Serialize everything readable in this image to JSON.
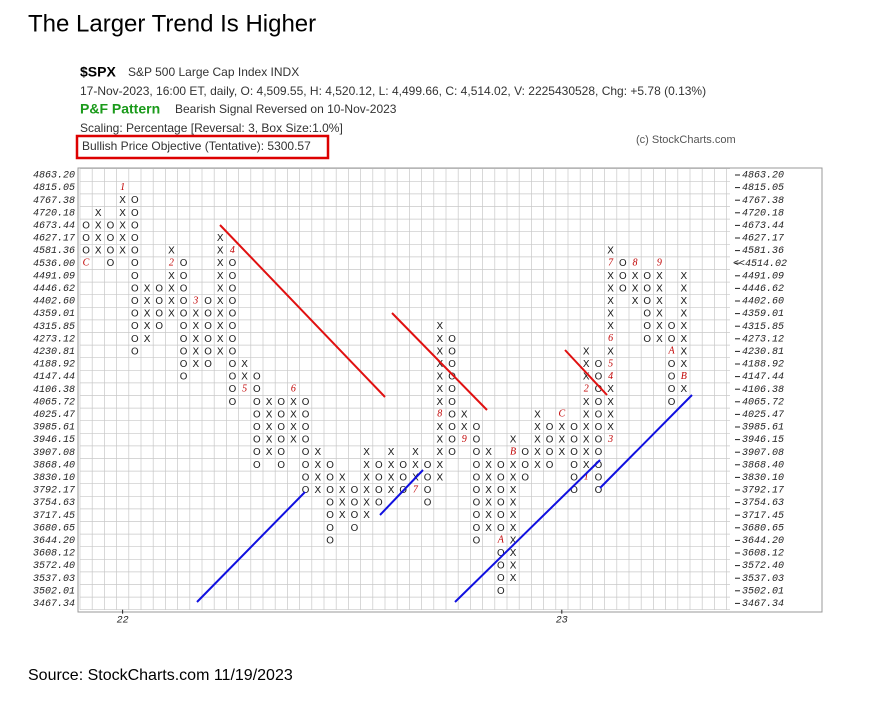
{
  "title": "The Larger Trend Is Higher",
  "source": "Source: StockCharts.com 11/19/2023",
  "header": {
    "symbol": "$SPX",
    "name": "S&P 500 Large Cap Index  INDX",
    "quote": "17-Nov-2023, 16:00 ET, daily, O: 4,509.55, H: 4,520.12, L: 4,499.66, C: 4,514.02, V: 2225430528, Chg: +5.78 (0.13%)",
    "pattern_label": "P&F Pattern",
    "pattern": "Bearish Signal Reversed on 10-Nov-2023",
    "scaling": "Scaling: Percentage [Reversal: 3, Box Size:1.0%]",
    "objective": "Bullish Price Objective (Tentative): 5300.57",
    "copyright": "(c) StockCharts.com"
  },
  "chart_data": {
    "type": "point_and_figure",
    "yticks": [
      {
        "value": 4863.2,
        "label": "4863.20"
      },
      {
        "value": 4815.05,
        "label": "4815.05"
      },
      {
        "value": 4767.38,
        "label": "4767.38"
      },
      {
        "value": 4720.18,
        "label": "4720.18"
      },
      {
        "value": 4673.44,
        "label": "4673.44"
      },
      {
        "value": 4627.17,
        "label": "4627.17"
      },
      {
        "value": 4581.36,
        "label": "4581.36"
      },
      {
        "value": 4536,
        "label": "4536.00"
      },
      {
        "value": 4491.09,
        "label": "4491.09"
      },
      {
        "value": 4446.62,
        "label": "4446.62"
      },
      {
        "value": 4402.6,
        "label": "4402.60"
      },
      {
        "value": 4359.01,
        "label": "4359.01"
      },
      {
        "value": 4315.85,
        "label": "4315.85"
      },
      {
        "value": 4273.12,
        "label": "4273.12"
      },
      {
        "value": 4230.81,
        "label": "4230.81"
      },
      {
        "value": 4188.92,
        "label": "4188.92"
      },
      {
        "value": 4147.44,
        "label": "4147.44"
      },
      {
        "value": 4106.38,
        "label": "4106.38"
      },
      {
        "value": 4065.72,
        "label": "4065.72"
      },
      {
        "value": 4025.47,
        "label": "4025.47"
      },
      {
        "value": 3985.61,
        "label": "3985.61"
      },
      {
        "value": 3946.15,
        "label": "3946.15"
      },
      {
        "value": 3907.08,
        "label": "3907.08"
      },
      {
        "value": 3868.4,
        "label": "3868.40"
      },
      {
        "value": 3830.1,
        "label": "3830.10"
      },
      {
        "value": 3792.17,
        "label": "3792.17"
      },
      {
        "value": 3754.63,
        "label": "3754.63"
      },
      {
        "value": 3717.45,
        "label": "3717.45"
      },
      {
        "value": 3680.65,
        "label": "3680.65"
      },
      {
        "value": 3644.2,
        "label": "3644.20"
      },
      {
        "value": 3608.12,
        "label": "3608.12"
      },
      {
        "value": 3572.4,
        "label": "3572.40"
      },
      {
        "value": 3537.03,
        "label": "3537.03"
      },
      {
        "value": 3502.01,
        "label": "3502.01"
      },
      {
        "value": 3467.34,
        "label": "3467.34"
      }
    ],
    "last_price": {
      "value": 4514.02,
      "label": "<<4514.02"
    },
    "xticks": [
      {
        "value": 3,
        "label": "22"
      },
      {
        "value": 39,
        "label": "23"
      }
    ],
    "x_color": "#222",
    "o_color": "#222",
    "month_color": "#c00000",
    "columns": [
      {
        "type": "O",
        "top": 4673.44,
        "bottom": 4536
      },
      {
        "type": "X",
        "top": 4720.18,
        "bottom": 4581.36
      },
      {
        "type": "O",
        "top": 4673.44,
        "bottom": 4536
      },
      {
        "type": "X",
        "top": 4815.05,
        "bottom": 4581.36
      },
      {
        "type": "O",
        "top": 4767.38,
        "bottom": 4230.81
      },
      {
        "type": "X",
        "top": 4446.62,
        "bottom": 4273.12
      },
      {
        "type": "O",
        "top": 4446.62,
        "bottom": 4315.85
      },
      {
        "type": "X",
        "top": 4581.36,
        "bottom": 4359.01
      },
      {
        "type": "O",
        "top": 4536,
        "bottom": 4147.44
      },
      {
        "type": "X",
        "top": 4402.6,
        "bottom": 4188.92
      },
      {
        "type": "O",
        "top": 4402.6,
        "bottom": 4188.92
      },
      {
        "type": "X",
        "top": 4627.17,
        "bottom": 4230.81
      },
      {
        "type": "O",
        "top": 4581.36,
        "bottom": 4065.72
      },
      {
        "type": "X",
        "top": 4188.92,
        "bottom": 4106.38
      },
      {
        "type": "O",
        "top": 4147.44,
        "bottom": 3868.4
      },
      {
        "type": "X",
        "top": 4065.72,
        "bottom": 3907.08
      },
      {
        "type": "O",
        "top": 4065.72,
        "bottom": 3868.4
      },
      {
        "type": "X",
        "top": 4106.38,
        "bottom": 3946.15
      },
      {
        "type": "O",
        "top": 4065.72,
        "bottom": 3792.17
      },
      {
        "type": "X",
        "top": 3907.08,
        "bottom": 3792.17
      },
      {
        "type": "O",
        "top": 3868.4,
        "bottom": 3644.2
      },
      {
        "type": "X",
        "top": 3830.1,
        "bottom": 3717.45
      },
      {
        "type": "O",
        "top": 3792.17,
        "bottom": 3680.65
      },
      {
        "type": "X",
        "top": 3907.08,
        "bottom": 3717.45
      },
      {
        "type": "O",
        "top": 3868.4,
        "bottom": 3754.63
      },
      {
        "type": "X",
        "top": 3907.08,
        "bottom": 3792.17
      },
      {
        "type": "O",
        "top": 3868.4,
        "bottom": 3792.17
      },
      {
        "type": "X",
        "top": 3907.08,
        "bottom": 3792.17
      },
      {
        "type": "O",
        "top": 3868.4,
        "bottom": 3754.63
      },
      {
        "type": "X",
        "top": 4315.85,
        "bottom": 3830.1
      },
      {
        "type": "O",
        "top": 4273.12,
        "bottom": 3907.08
      },
      {
        "type": "X",
        "top": 4025.47,
        "bottom": 3946.15
      },
      {
        "type": "O",
        "top": 3985.61,
        "bottom": 3644.2
      },
      {
        "type": "X",
        "top": 3907.08,
        "bottom": 3680.65
      },
      {
        "type": "O",
        "top": 3868.4,
        "bottom": 3502.01
      },
      {
        "type": "X",
        "top": 3946.15,
        "bottom": 3537.03
      },
      {
        "type": "O",
        "top": 3907.08,
        "bottom": 3830.1
      },
      {
        "type": "X",
        "top": 4025.47,
        "bottom": 3868.4
      },
      {
        "type": "O",
        "top": 3985.61,
        "bottom": 3868.4
      },
      {
        "type": "X",
        "top": 4025.47,
        "bottom": 3907.08
      },
      {
        "type": "O",
        "top": 3985.61,
        "bottom": 3792.17
      },
      {
        "type": "X",
        "top": 4230.81,
        "bottom": 3830.1
      },
      {
        "type": "O",
        "top": 4188.92,
        "bottom": 3792.17
      },
      {
        "type": "X",
        "top": 4581.36,
        "bottom": 3946.15
      },
      {
        "type": "O",
        "top": 4536,
        "bottom": 4446.62
      },
      {
        "type": "X",
        "top": 4536,
        "bottom": 4402.6
      },
      {
        "type": "O",
        "top": 4491.09,
        "bottom": 4273.12
      },
      {
        "type": "X",
        "top": 4536,
        "bottom": 4273.12
      },
      {
        "type": "O",
        "top": 4315.85,
        "bottom": 4065.72
      },
      {
        "type": "X",
        "top": 4491.09,
        "bottom": 4106.38
      }
    ],
    "months": [
      {
        "label": "C",
        "column": 0,
        "price": 4536
      },
      {
        "label": "1",
        "column": 3,
        "price": 4815.05
      },
      {
        "label": "2",
        "column": 7,
        "price": 4536
      },
      {
        "label": "3",
        "column": 9,
        "price": 4402.6
      },
      {
        "label": "4",
        "column": 12,
        "price": 4581.36
      },
      {
        "label": "5",
        "column": 13,
        "price": 4106.38
      },
      {
        "label": "6",
        "column": 17,
        "price": 4106.38
      },
      {
        "label": "7",
        "column": 27,
        "price": 3792.17
      },
      {
        "label": "8",
        "column": 29,
        "price": 4025.47
      },
      {
        "label": "9",
        "column": 31,
        "price": 3946.15
      },
      {
        "label": "A",
        "column": 34,
        "price": 3644.2
      },
      {
        "label": "B",
        "column": 35,
        "price": 3907.08
      },
      {
        "label": "C",
        "column": 39,
        "price": 4025.47
      },
      {
        "label": "1",
        "column": 41,
        "price": 3830.1
      },
      {
        "label": "2",
        "column": 41,
        "price": 4106.38
      },
      {
        "label": "3",
        "column": 43,
        "price": 3946.15
      },
      {
        "label": "4",
        "column": 43,
        "price": 4147.44
      },
      {
        "label": "5",
        "column": 43,
        "price": 4188.92
      },
      {
        "label": "6",
        "column": 43,
        "price": 4273.12
      },
      {
        "label": "7",
        "column": 43,
        "price": 4536
      },
      {
        "label": "8",
        "column": 45,
        "price": 4536
      },
      {
        "label": "9",
        "column": 47,
        "price": 4536
      },
      {
        "label": "A",
        "column": 48,
        "price": 4230.81
      },
      {
        "label": "B",
        "column": 49,
        "price": 4147.44
      }
    ]
  }
}
